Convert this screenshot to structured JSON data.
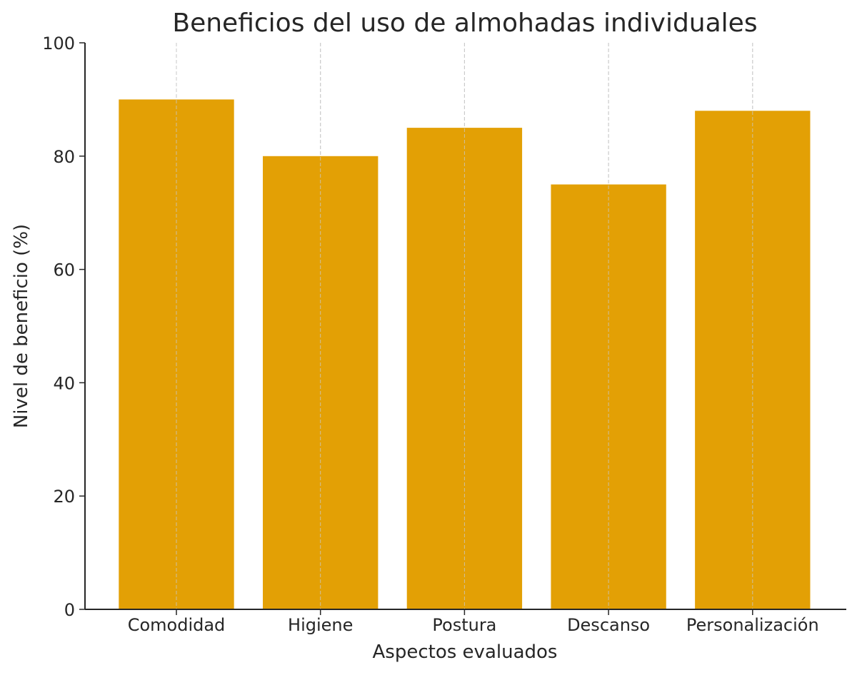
{
  "chart_data": {
    "type": "bar",
    "title": "Beneficios del uso de almohadas individuales",
    "x_label": "Aspectos evaluados",
    "y_label": "Nivel de beneficio (%)",
    "categories": [
      "Comodidad",
      "Higiene",
      "Postura",
      "Descanso",
      "Personalización"
    ],
    "values": [
      90,
      80,
      85,
      75,
      88
    ],
    "color": "#e3a005",
    "ylim": [
      0,
      100
    ],
    "yticks": [
      0,
      20,
      40,
      60,
      80,
      100
    ],
    "grid": "x"
  }
}
